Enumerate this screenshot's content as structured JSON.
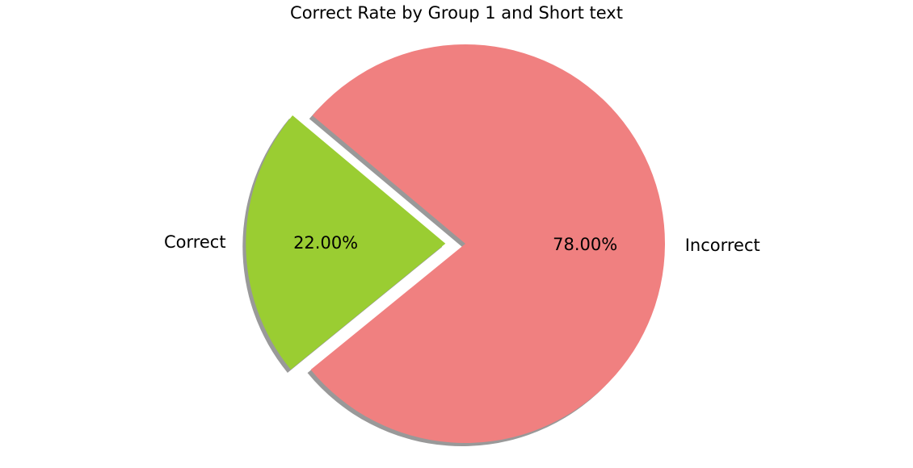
{
  "chart_data": {
    "type": "pie",
    "title": "Correct Rate by Group 1 and Short text",
    "slices": [
      {
        "label": "Correct",
        "value": 22.0,
        "pct_label": "22.00%",
        "color": "#9ACD32",
        "exploded": true
      },
      {
        "label": "Incorrect",
        "value": 78.0,
        "pct_label": "78.00%",
        "color": "#F08080",
        "exploded": false
      }
    ],
    "shadow": true,
    "shadow_color": "#999999"
  }
}
